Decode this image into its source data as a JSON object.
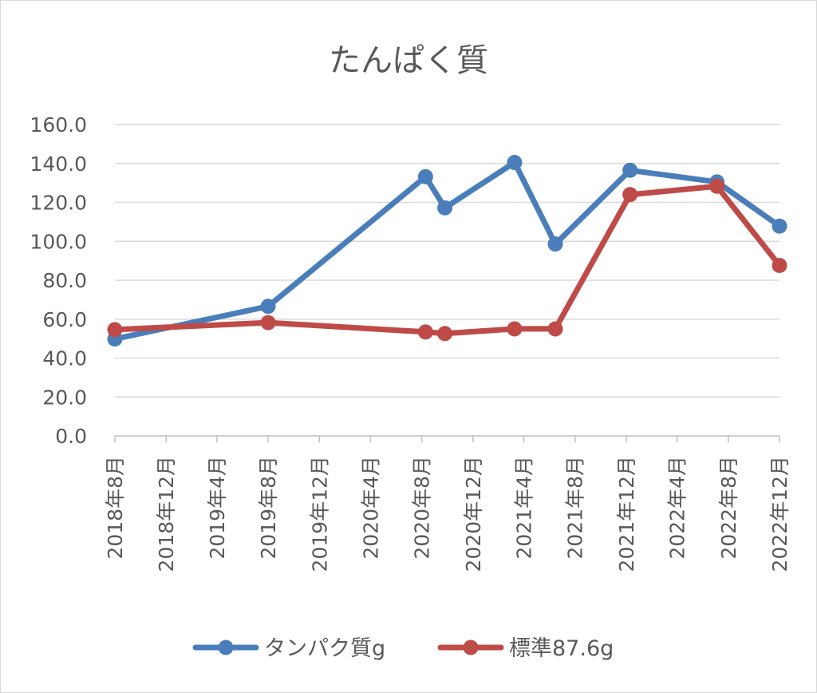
{
  "chart_data": {
    "type": "line",
    "title": "たんぱく質",
    "xlabel": "",
    "ylabel": "",
    "ylim": [
      0,
      160
    ],
    "y_ticks": [
      "0.0",
      "20.0",
      "40.0",
      "60.0",
      "80.0",
      "100.0",
      "120.0",
      "140.0",
      "160.0"
    ],
    "x_ticks": [
      "2018年8月",
      "2018年12月",
      "2019年4月",
      "2019年8月",
      "2019年12月",
      "2020年4月",
      "2020年8月",
      "2020年12月",
      "2021年4月",
      "2021年8月",
      "2021年12月",
      "2022年4月",
      "2022年8月",
      "2022年12月"
    ],
    "x_range": [
      "2018-08-01",
      "2022-12-01"
    ],
    "grid": "horizontal",
    "legend_position": "bottom",
    "series": [
      {
        "name": "タンパク質g",
        "color": "#4a7ebb",
        "points": [
          {
            "x": "2018-08-01",
            "y": 49.8
          },
          {
            "x": "2019-08-01",
            "y": 66.6
          },
          {
            "x": "2020-08-10",
            "y": 133.2
          },
          {
            "x": "2020-09-25",
            "y": 117.2
          },
          {
            "x": "2021-03-10",
            "y": 140.5
          },
          {
            "x": "2021-06-15",
            "y": 98.6
          },
          {
            "x": "2021-12-10",
            "y": 136.5
          },
          {
            "x": "2022-07-05",
            "y": 130.5
          },
          {
            "x": "2022-12-01",
            "y": 107.8
          }
        ]
      },
      {
        "name": "標準87.6g",
        "color": "#be4b48",
        "points": [
          {
            "x": "2018-08-01",
            "y": 54.6
          },
          {
            "x": "2019-08-01",
            "y": 58.2
          },
          {
            "x": "2020-08-10",
            "y": 53.4
          },
          {
            "x": "2020-09-25",
            "y": 52.6
          },
          {
            "x": "2021-03-10",
            "y": 55.0
          },
          {
            "x": "2021-06-15",
            "y": 55.0
          },
          {
            "x": "2021-12-10",
            "y": 124.0
          },
          {
            "x": "2022-07-05",
            "y": 128.3
          },
          {
            "x": "2022-12-01",
            "y": 87.6
          }
        ]
      }
    ]
  }
}
